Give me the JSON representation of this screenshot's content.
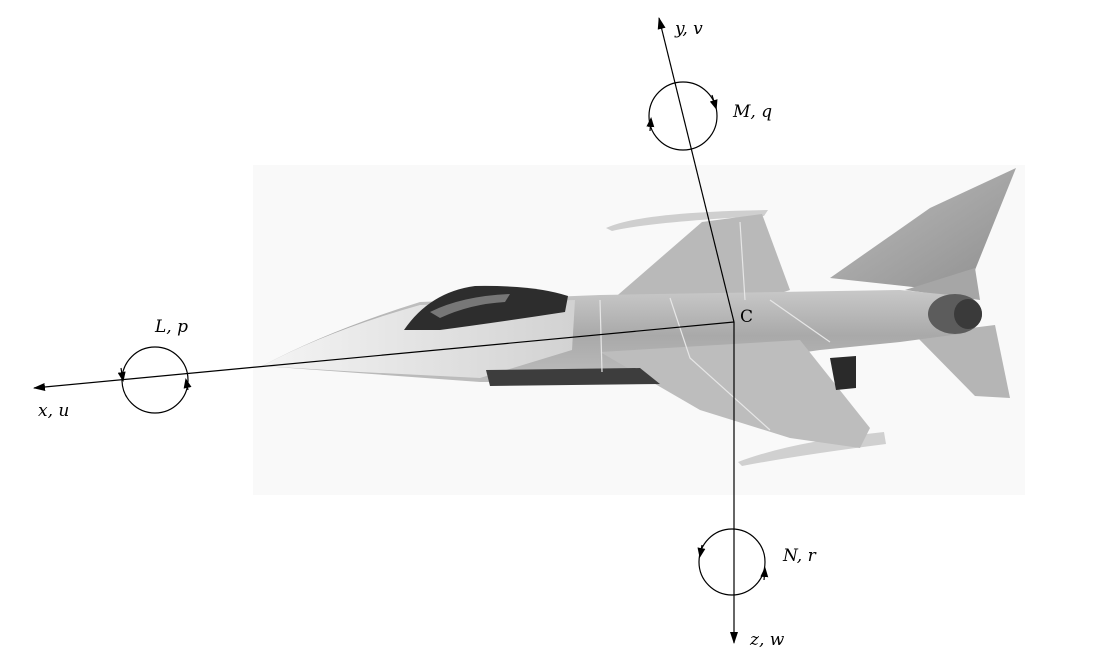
{
  "diagram": {
    "center_label": "C",
    "axes": [
      {
        "id": "x",
        "label": "x, u"
      },
      {
        "id": "y",
        "label": "y, v"
      },
      {
        "id": "z",
        "label": "z, w"
      }
    ],
    "moments": [
      {
        "id": "roll",
        "label": "L, p"
      },
      {
        "id": "pitch",
        "label": "M, q"
      },
      {
        "id": "yaw",
        "label": "N, r"
      }
    ]
  }
}
